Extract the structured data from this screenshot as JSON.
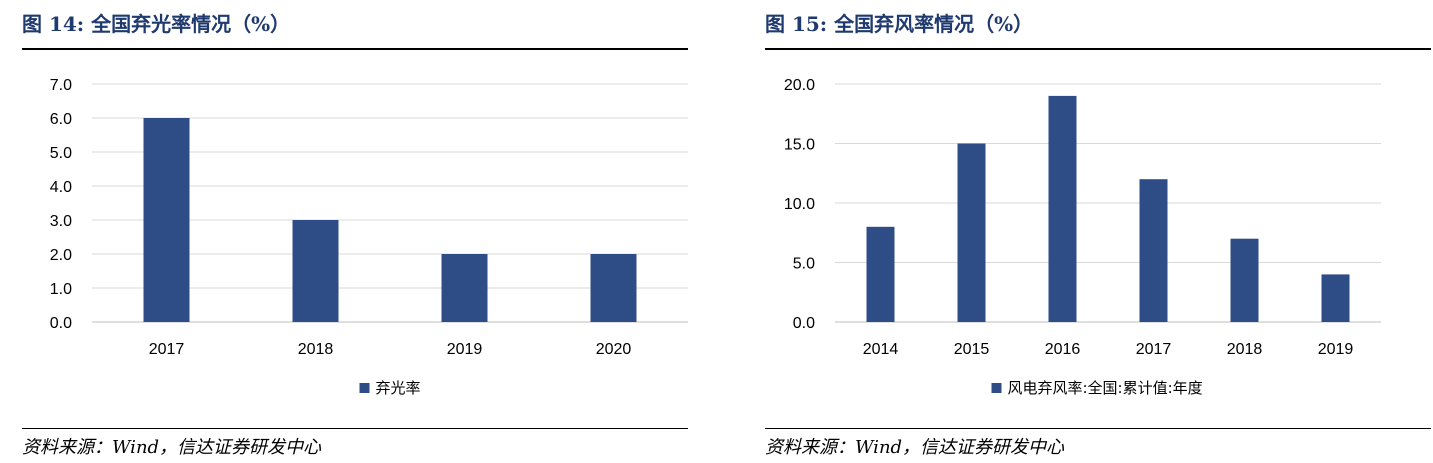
{
  "figures": [
    {
      "title": "图 14:  全国弃光率情况（%）",
      "source": "资料来源：Wind，信达证券研发中心"
    },
    {
      "title": "图 15:  全国弃风率情况（%）",
      "source": "资料来源：Wind，信达证券研发中心"
    }
  ],
  "chart_data": [
    {
      "type": "bar",
      "title": "图 14:  全国弃光率情况（%）",
      "categories": [
        "2017",
        "2018",
        "2019",
        "2020"
      ],
      "series": [
        {
          "name": "弃光率",
          "values": [
            6.0,
            3.0,
            2.0,
            2.0
          ]
        }
      ],
      "ylim": [
        0,
        7
      ],
      "yticks": [
        "0.0",
        "1.0",
        "2.0",
        "3.0",
        "4.0",
        "5.0",
        "6.0",
        "7.0"
      ],
      "grid": true,
      "legend_position": "bottom",
      "bar_color": "#2e4d87"
    },
    {
      "type": "bar",
      "title": "图 15:  全国弃风率情况（%）",
      "categories": [
        "2014",
        "2015",
        "2016",
        "2017",
        "2018",
        "2019"
      ],
      "series": [
        {
          "name": "风电弃风率:全国:累计值:年度",
          "values": [
            8.0,
            15.0,
            19.0,
            12.0,
            7.0,
            4.0
          ]
        }
      ],
      "ylim": [
        0,
        20
      ],
      "yticks": [
        "0.0",
        "5.0",
        "10.0",
        "15.0",
        "20.0"
      ],
      "grid": true,
      "legend_position": "bottom",
      "bar_color": "#2e4d87"
    }
  ]
}
